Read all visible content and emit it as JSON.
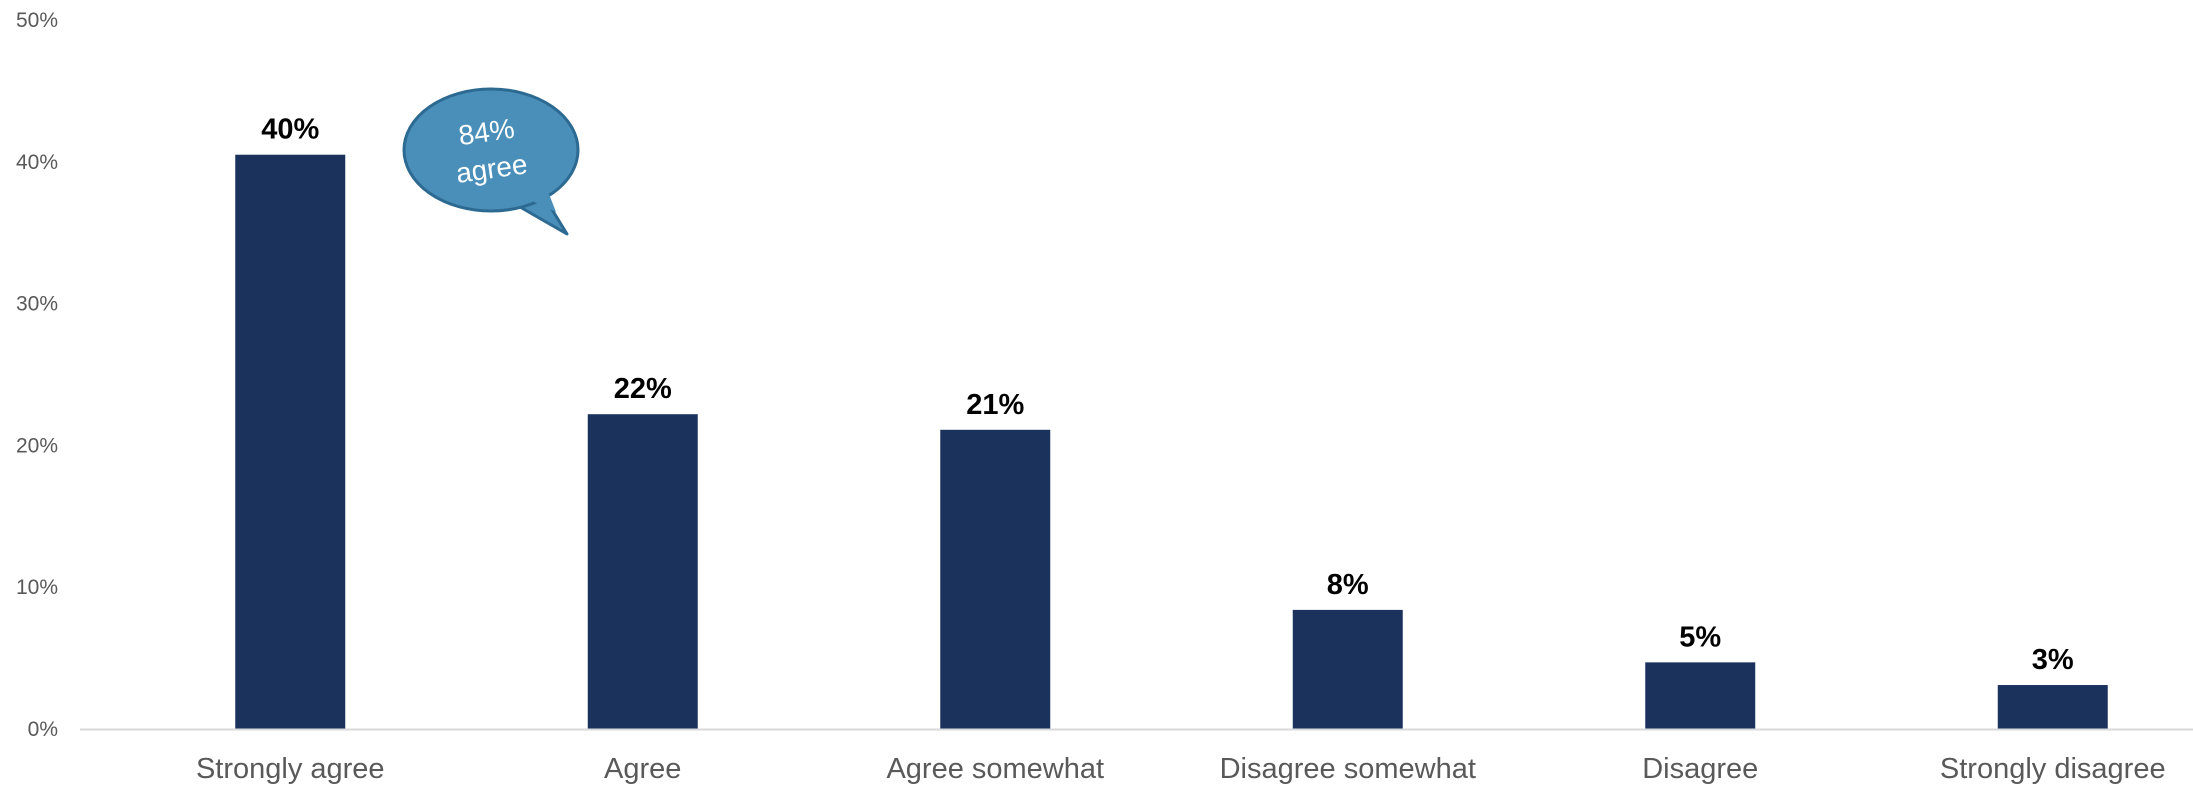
{
  "chart_data": {
    "type": "bar",
    "categories": [
      "Strongly agree",
      "Agree",
      "Agree somewhat",
      "Disagree somewhat",
      "Disagree",
      "Strongly disagree"
    ],
    "values": [
      40.5,
      22.2,
      21.1,
      8.4,
      4.7,
      3.1
    ],
    "data_labels": [
      "40%",
      "22%",
      "21%",
      "8%",
      "5%",
      "3%"
    ],
    "ylim": [
      0,
      50
    ],
    "yticks": [
      0,
      10,
      20,
      30,
      40,
      50
    ],
    "ytick_labels": [
      "0%",
      "10%",
      "20%",
      "30%",
      "40%",
      "50%"
    ],
    "title": "",
    "xlabel": "",
    "ylabel": "",
    "grid": false,
    "legend": "none",
    "bar_color": "#1b325d",
    "callout": {
      "lines": [
        "84%",
        "agree"
      ],
      "fill": "#4a8fba",
      "stroke": "#2c6a92",
      "text_color": "#ffffff"
    }
  }
}
